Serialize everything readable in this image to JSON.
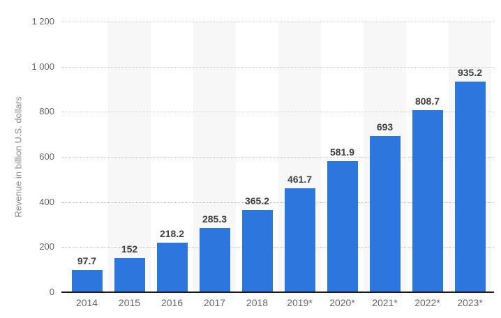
{
  "chart_data": {
    "type": "bar",
    "title": "",
    "ylabel": "Revenue in billion U.S. dollars",
    "xlabel": "",
    "categories": [
      "2014",
      "2015",
      "2016",
      "2017",
      "2018",
      "2019*",
      "2020*",
      "2021*",
      "2022*",
      "2023*"
    ],
    "values": [
      97.7,
      152,
      218.2,
      285.3,
      365.2,
      461.7,
      581.9,
      693,
      808.7,
      935.2
    ],
    "value_labels": [
      "97.7",
      "152",
      "218.2",
      "285.3",
      "365.2",
      "461.7",
      "581.9",
      "693",
      "808.7",
      "935.2"
    ],
    "ylim": [
      0,
      1200
    ],
    "ytick_values": [
      0,
      200,
      400,
      600,
      800,
      1000,
      1200
    ],
    "ytick_labels": [
      "0",
      "200",
      "400",
      "600",
      "800",
      "1 000",
      "1 200"
    ],
    "grid": "horizontal-dotted",
    "legend": "none",
    "colors": {
      "bar": "#2d76dd",
      "plot_band": "#f7f7f7",
      "gridline": "#c8c8c8",
      "axis_line": "#1a1a1a",
      "value_label": "#404040",
      "tick_label": "#666666",
      "axis_title": "#8c8c8c",
      "background": "#ffffff"
    }
  }
}
